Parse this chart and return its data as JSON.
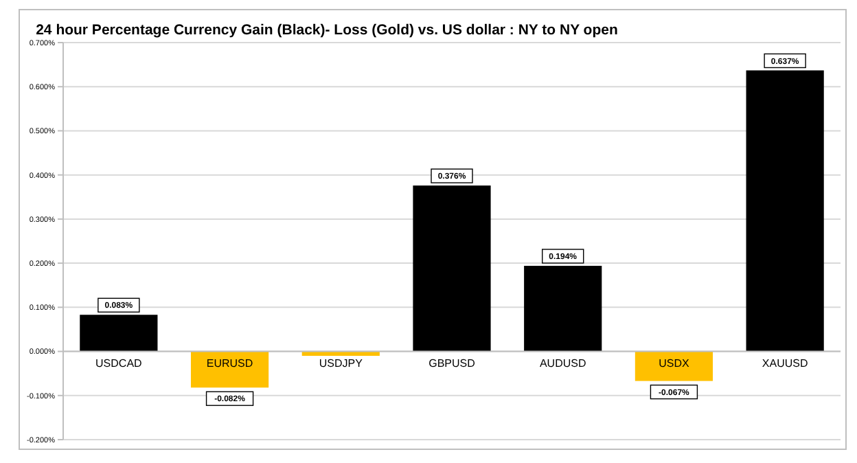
{
  "chart_data": {
    "type": "bar",
    "title": "24 hour Percentage Currency  Gain (Black)- Loss (Gold)  vs. US dollar :  NY  to NY  open",
    "categories": [
      "USDCAD",
      "EURUSD",
      "USDJPY",
      "GBPUSD",
      "AUDUSD",
      "USDX",
      "XAUUSD"
    ],
    "values": [
      0.083,
      -0.082,
      -0.01,
      0.376,
      0.194,
      -0.067,
      0.637
    ],
    "colors": [
      "#000000",
      "#ffc000",
      "#ffc000",
      "#000000",
      "#000000",
      "#ffc000",
      "#000000"
    ],
    "value_labels": [
      "0.083%",
      "-0.082%",
      null,
      "0.376%",
      "0.194%",
      "-0.067%",
      "0.637%"
    ],
    "ylim": [
      -0.2,
      0.7
    ],
    "yticks": [
      {
        "value": -0.2,
        "label": "-0.200%"
      },
      {
        "value": -0.1,
        "label": "-0.100%"
      },
      {
        "value": 0,
        "label": "0.000%"
      },
      {
        "value": 0.1,
        "label": "0.100%"
      },
      {
        "value": 0.2,
        "label": "0.200%"
      },
      {
        "value": 0.3,
        "label": "0.300%"
      },
      {
        "value": 0.4,
        "label": "0.400%"
      },
      {
        "value": 0.5,
        "label": "0.500%"
      },
      {
        "value": 0.6,
        "label": "0.600%"
      },
      {
        "value": 0.7,
        "label": "0.700%"
      }
    ],
    "grid": "y"
  }
}
